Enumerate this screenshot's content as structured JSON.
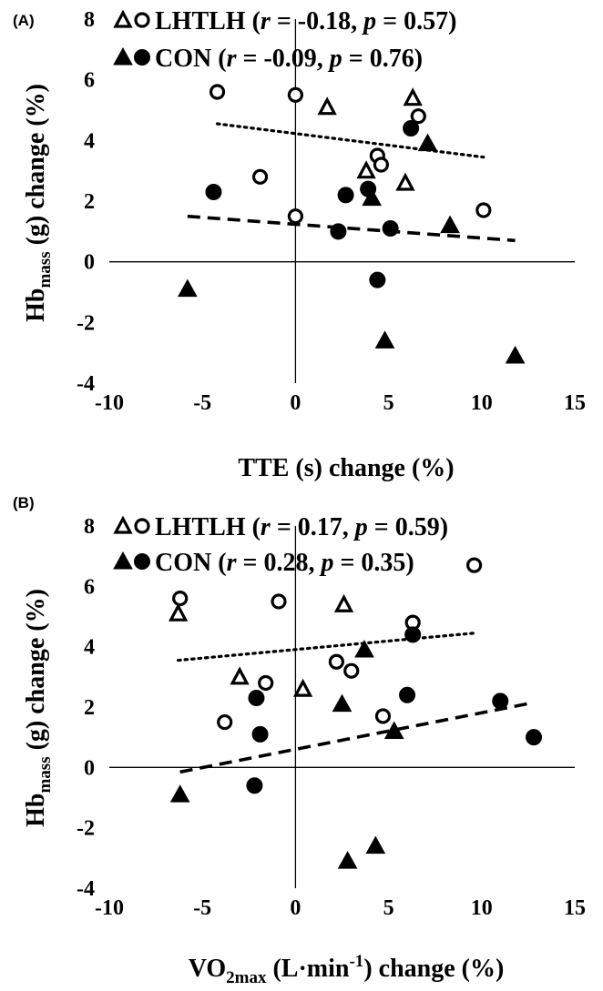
{
  "chart_data": [
    {
      "panel_label": "(A)",
      "type": "scatter",
      "xlabel": "TTE (s) change (%)",
      "ylabel": {
        "prefix": "Hb",
        "sub": "mass",
        "suffix": " (g) change (%)"
      },
      "xlim": [
        -10,
        15
      ],
      "ylim": [
        -4,
        8
      ],
      "xticks": [
        "-10",
        "-5",
        "0",
        "5",
        "10",
        "15"
      ],
      "yticks": [
        "-4",
        "-2",
        "0",
        "2",
        "4",
        "6",
        "8"
      ],
      "grid": false,
      "legend_position": "top",
      "legend": [
        {
          "symbols": "open-triangle-circle",
          "label": "LHTLH",
          "r": "-0.18",
          "p": "0.57"
        },
        {
          "symbols": "filled-triangle-circle",
          "label": "CON",
          "r": "-0.09",
          "p": "0.76"
        }
      ],
      "series": [
        {
          "name": "LHTLH",
          "marker": "open-triangle",
          "points": [
            [
              1.7,
              5.1
            ],
            [
              6.3,
              5.4
            ],
            [
              3.8,
              3.0
            ],
            [
              5.9,
              2.6
            ]
          ]
        },
        {
          "name": "LHTLH",
          "marker": "open-circle",
          "points": [
            [
              -4.2,
              5.6
            ],
            [
              0.0,
              5.5
            ],
            [
              6.6,
              4.8
            ],
            [
              4.4,
              3.5
            ],
            [
              4.6,
              3.2
            ],
            [
              -1.9,
              2.8
            ],
            [
              0.0,
              1.5
            ],
            [
              10.1,
              1.7
            ]
          ]
        },
        {
          "name": "CON",
          "marker": "filled-triangle",
          "points": [
            [
              7.1,
              3.9
            ],
            [
              4.1,
              2.1
            ],
            [
              8.3,
              1.2
            ],
            [
              -5.8,
              -0.9
            ],
            [
              4.8,
              -2.6
            ],
            [
              11.8,
              -3.1
            ]
          ]
        },
        {
          "name": "CON",
          "marker": "filled-circle",
          "points": [
            [
              6.2,
              4.4
            ],
            [
              -4.4,
              2.3
            ],
            [
              2.7,
              2.2
            ],
            [
              3.9,
              2.4
            ],
            [
              2.3,
              1.0
            ],
            [
              5.1,
              1.1
            ],
            [
              4.4,
              -0.6
            ]
          ]
        }
      ],
      "trendlines": [
        {
          "series": "LHTLH",
          "style": "dotted",
          "from": [
            -4.2,
            4.55
          ],
          "to": [
            10.1,
            3.45
          ]
        },
        {
          "series": "CON",
          "style": "dashed",
          "from": [
            -5.8,
            1.5
          ],
          "to": [
            11.8,
            0.7
          ]
        }
      ]
    },
    {
      "panel_label": "(B)",
      "type": "scatter",
      "xlabel": {
        "prefix": "VO",
        "sub": "2max",
        "mid": " (L·min",
        "sup": "-1",
        "suffix": ") change (%)"
      },
      "ylabel": {
        "prefix": "Hb",
        "sub": "mass",
        "suffix": " (g) change (%)"
      },
      "xlim": [
        -10,
        15
      ],
      "ylim": [
        -4,
        8
      ],
      "xticks": [
        "-10",
        "-5",
        "0",
        "5",
        "10",
        "15"
      ],
      "yticks": [
        "-4",
        "-2",
        "0",
        "2",
        "4",
        "6",
        "8"
      ],
      "grid": false,
      "legend_position": "top",
      "legend": [
        {
          "symbols": "open-triangle-circle",
          "label": "LHTLH",
          "r": "0.17",
          "p": "0.59"
        },
        {
          "symbols": "filled-triangle-circle",
          "label": "CON",
          "r": "0.28",
          "p": "0.35"
        }
      ],
      "series": [
        {
          "name": "LHTLH",
          "marker": "open-triangle",
          "points": [
            [
              -6.3,
              5.1
            ],
            [
              2.6,
              5.4
            ],
            [
              -3.0,
              3.0
            ],
            [
              0.4,
              2.6
            ]
          ]
        },
        {
          "name": "LHTLH",
          "marker": "open-circle",
          "points": [
            [
              -6.2,
              5.6
            ],
            [
              -0.9,
              5.5
            ],
            [
              9.6,
              6.7
            ],
            [
              6.3,
              4.8
            ],
            [
              2.2,
              3.5
            ],
            [
              3.0,
              3.2
            ],
            [
              -1.6,
              2.8
            ],
            [
              -3.8,
              1.5
            ],
            [
              4.7,
              1.7
            ]
          ]
        },
        {
          "name": "CON",
          "marker": "filled-triangle",
          "points": [
            [
              3.7,
              3.9
            ],
            [
              2.5,
              2.1
            ],
            [
              5.3,
              1.2
            ],
            [
              -6.2,
              -0.9
            ],
            [
              4.3,
              -2.6
            ],
            [
              2.8,
              -3.1
            ]
          ]
        },
        {
          "name": "CON",
          "marker": "filled-circle",
          "points": [
            [
              6.3,
              4.4
            ],
            [
              -2.1,
              2.3
            ],
            [
              6.0,
              2.4
            ],
            [
              11.0,
              2.2
            ],
            [
              12.8,
              1.0
            ],
            [
              -1.9,
              1.1
            ],
            [
              -2.2,
              -0.6
            ]
          ]
        }
      ],
      "trendlines": [
        {
          "series": "LHTLH",
          "style": "dotted",
          "from": [
            -6.3,
            3.55
          ],
          "to": [
            9.6,
            4.45
          ]
        },
        {
          "series": "CON",
          "style": "dashed",
          "from": [
            -6.2,
            -0.15
          ],
          "to": [
            12.8,
            2.15
          ]
        }
      ]
    }
  ]
}
